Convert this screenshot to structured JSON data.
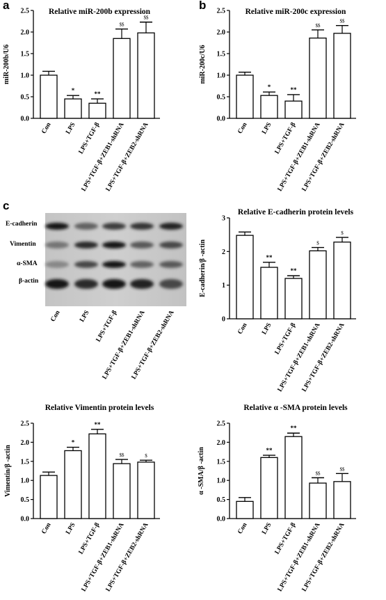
{
  "panels": {
    "a": "a",
    "b": "b",
    "c": "c"
  },
  "blot": {
    "rows": [
      "E-cadherin",
      "Vimentin",
      "α-SMA",
      "β-actin"
    ],
    "lanes": [
      "Con",
      "LPS",
      "LPS+TGF-β",
      "LPS+TGF-β+ZEB1-shRNA",
      "LPS+TGF-β+ZEB2-shRNA"
    ]
  },
  "chart_data": [
    {
      "id": "miR200b",
      "type": "bar",
      "title": "Relative miR-200b expression",
      "ylabel": "miR-200b/U6",
      "xlabel": "",
      "ylim": [
        0,
        2.5
      ],
      "yticks": [
        0.0,
        0.5,
        1.0,
        1.5,
        2.0,
        2.5
      ],
      "tick_decimals": 1,
      "categories": [
        "Con",
        "LPS",
        "LPS+TGF-β",
        "LPS+TGF-β+ZEB1-shRNA",
        "LPS+TGF-β+ZEB2-shRNA"
      ],
      "values": [
        1.0,
        0.45,
        0.35,
        1.85,
        1.98
      ],
      "errors": [
        0.09,
        0.08,
        0.1,
        0.22,
        0.25
      ],
      "annotations": [
        "",
        "*",
        "**",
        "$$",
        "$$"
      ]
    },
    {
      "id": "miR200c",
      "type": "bar",
      "title": "Relative miR-200c expression",
      "ylabel": "miR-200c/U6",
      "xlabel": "",
      "ylim": [
        0,
        2.5
      ],
      "yticks": [
        0.0,
        0.5,
        1.0,
        1.5,
        2.0,
        2.5
      ],
      "tick_decimals": 1,
      "categories": [
        "Con",
        "LPS",
        "LPS+TGF-β",
        "LPS+TGF-β+ZEB1-shRNA",
        "LPS+TGF-β+ZEB2-shRNA"
      ],
      "values": [
        1.0,
        0.53,
        0.4,
        1.86,
        1.97
      ],
      "errors": [
        0.07,
        0.08,
        0.15,
        0.19,
        0.18
      ],
      "annotations": [
        "",
        "*",
        "**",
        "$$",
        "$$"
      ]
    },
    {
      "id": "ecad",
      "type": "bar",
      "title": "Relative E-cadherin protein levels",
      "ylabel": "E-cadherin/β -actin",
      "xlabel": "",
      "ylim": [
        0,
        3
      ],
      "yticks": [
        0,
        1,
        2,
        3
      ],
      "tick_decimals": 0,
      "categories": [
        "Con",
        "LPS",
        "LPS+TGF-β",
        "LPS+TGF-β+ZEB1-shRNA",
        "LPS+TGF-β+ZEB2-shRNA"
      ],
      "values": [
        2.48,
        1.53,
        1.2,
        2.02,
        2.28
      ],
      "errors": [
        0.1,
        0.15,
        0.08,
        0.1,
        0.14
      ],
      "annotations": [
        "",
        "**",
        "**",
        "$",
        "$"
      ]
    },
    {
      "id": "vim",
      "type": "bar",
      "title": "Relative Vimentin protein levels",
      "ylabel": "Vimentin/β -actin",
      "xlabel": "",
      "ylim": [
        0,
        2.5
      ],
      "yticks": [
        0.0,
        0.5,
        1.0,
        1.5,
        2.0,
        2.5
      ],
      "tick_decimals": 1,
      "categories": [
        "Con",
        "LPS",
        "LPS+TGF-β",
        "LPS+TGF-β+ZEB1-shRNA",
        "LPS+TGF-β+ZEB2-shRNA"
      ],
      "values": [
        1.13,
        1.78,
        2.22,
        1.44,
        1.48
      ],
      "errors": [
        0.09,
        0.09,
        0.12,
        0.11,
        0.05
      ],
      "annotations": [
        "",
        "*",
        "**",
        "$$",
        "$"
      ]
    },
    {
      "id": "asma",
      "type": "bar",
      "title": "Relative α -SMA protein levels",
      "ylabel": "α -SMA/β -actin",
      "xlabel": "",
      "ylim": [
        0,
        2.5
      ],
      "yticks": [
        0.0,
        0.5,
        1.0,
        1.5,
        2.0,
        2.5
      ],
      "tick_decimals": 1,
      "categories": [
        "Con",
        "LPS",
        "LPS+TGF-β",
        "LPS+TGF-β+ZEB1-shRNA",
        "LPS+TGF-β+ZEB2-shRNA"
      ],
      "values": [
        0.45,
        1.6,
        2.15,
        0.93,
        0.97
      ],
      "errors": [
        0.1,
        0.06,
        0.09,
        0.14,
        0.21
      ],
      "annotations": [
        "",
        "**",
        "**",
        "$$",
        "$$"
      ]
    }
  ]
}
